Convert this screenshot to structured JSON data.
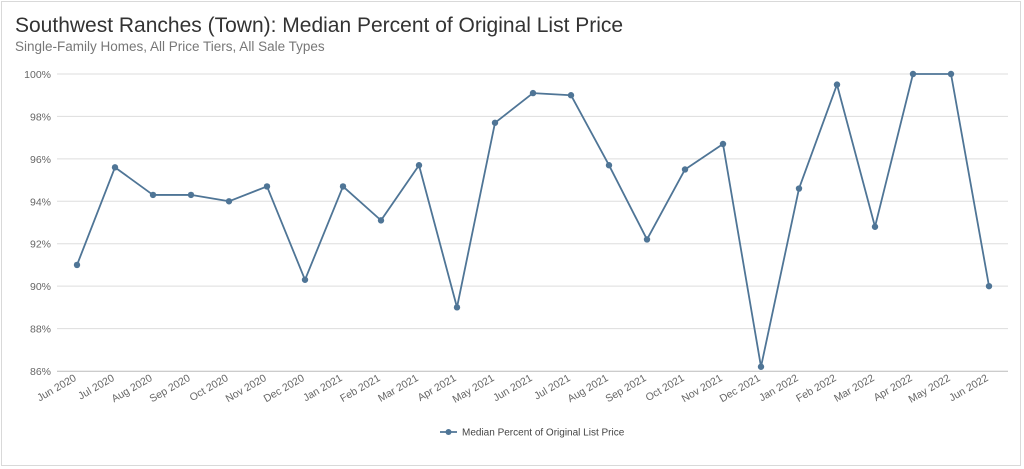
{
  "chart_data": {
    "type": "line",
    "title": "Southwest Ranches (Town): Median Percent of Original List Price",
    "subtitle": "Single-Family Homes, All Price Tiers, All Sale Types",
    "categories": [
      "Jun 2020",
      "Jul 2020",
      "Aug 2020",
      "Sep 2020",
      "Oct 2020",
      "Nov 2020",
      "Dec 2020",
      "Jan 2021",
      "Feb 2021",
      "Mar 2021",
      "Apr 2021",
      "May 2021",
      "Jun 2021",
      "Jul 2021",
      "Aug 2021",
      "Sep 2021",
      "Oct 2021",
      "Nov 2021",
      "Dec 2021",
      "Jan 2022",
      "Feb 2022",
      "Mar 2022",
      "Apr 2022",
      "May 2022",
      "Jun 2022"
    ],
    "series": [
      {
        "name": "Median Percent of Original List Price",
        "values": [
          91.0,
          95.6,
          94.3,
          94.3,
          94.0,
          94.7,
          90.3,
          94.7,
          93.1,
          95.7,
          89.0,
          97.7,
          99.1,
          99.0,
          95.7,
          92.2,
          95.5,
          96.7,
          86.2,
          94.6,
          99.5,
          92.8,
          100.0,
          100.0,
          90.0
        ]
      }
    ],
    "yticks": [
      "86%",
      "88%",
      "90%",
      "92%",
      "94%",
      "96%",
      "98%",
      "100%"
    ],
    "ylim": [
      86,
      100
    ],
    "grid": true,
    "legend_position": "bottom-center",
    "colors": {
      "line": "#4f7596",
      "grid": "#dddddd",
      "axis": "#cccccc"
    }
  }
}
